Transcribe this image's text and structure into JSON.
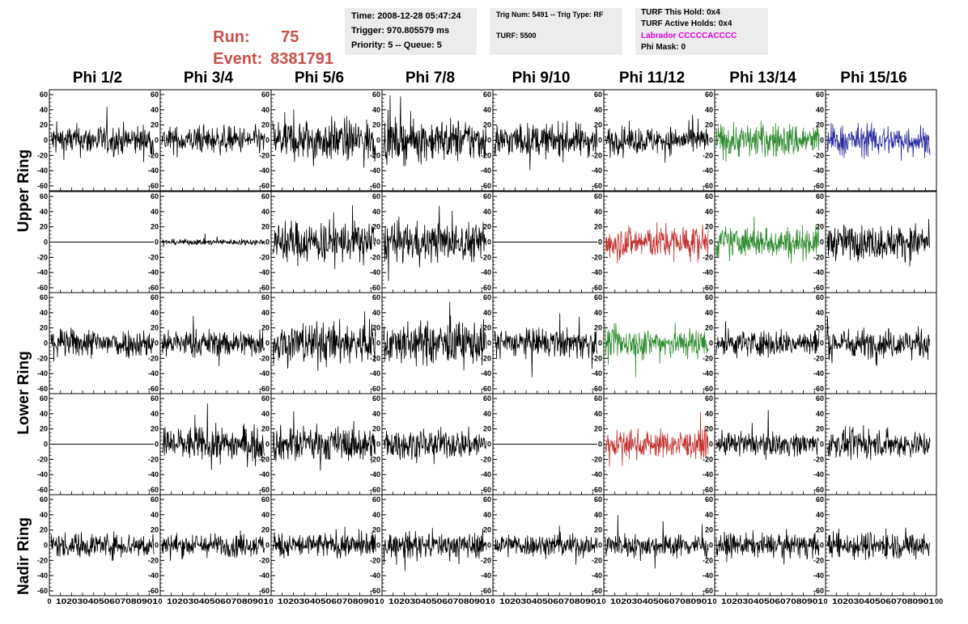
{
  "header": {
    "run_label": "Run:",
    "run_value": "75",
    "event_label": "Event:",
    "event_value": "8381791"
  },
  "info1": {
    "time": "Time: 2008-12-28 05:47:24",
    "trigger": "Trigger: 970.805579 ms",
    "priority": "Priority: 5 -- Queue: 5"
  },
  "info2": {
    "trig": "Trig Num: 5491 -- Trig Type: RF",
    "turf": "TURF: 5500"
  },
  "info3": {
    "this_hold": "TURF This Hold: 0x4",
    "active_holds": "TURF Active Holds: 0x4",
    "labrador": "Labrador CCCCCACCCC",
    "phi_mask": "Phi Mask: 0",
    "labrador_color": "#e000e0"
  },
  "phi_headers": [
    "Phi 1/2",
    "Phi 3/4",
    "Phi 5/6",
    "Phi 7/8",
    "Phi 9/10",
    "Phi 11/12",
    "Phi 13/14",
    "Phi 15/16"
  ],
  "ring_labels": [
    "Upper Ring",
    "Lower Ring",
    "Nadir Ring"
  ],
  "colors": {
    "black": "#000000",
    "green": "#2e8b2e",
    "blue": "#2a2a9c",
    "red": "#c0302c"
  },
  "chart_data": {
    "type": "line",
    "description_rows": [
      "upper-1",
      "upper-2",
      "lower-1",
      "lower-2",
      "nadir"
    ],
    "xlim": [
      0,
      100
    ],
    "ylim": [
      -60,
      60
    ],
    "y_ticks": [
      -60,
      -40,
      -20,
      0,
      20,
      40,
      60
    ],
    "x_ticks": [
      0,
      10,
      20,
      30,
      40,
      50,
      60,
      70,
      80,
      90,
      100
    ],
    "x_tick_labels": [
      "0",
      "10",
      "20",
      "30",
      "40",
      "50",
      "60",
      "70",
      "80",
      "90",
      "100"
    ],
    "bottom_axis_text": [
      "0",
      "1020304050607080901",
      "0",
      "1020304050607080901",
      "0",
      "1020304050607080901",
      "0",
      "1020304050607080901",
      "0",
      "1020304050607080901",
      "0",
      "1020304050607080901",
      "0",
      "1020304050607080901",
      "0",
      "1020304050607080901",
      "00"
    ],
    "panels": [
      [
        {
          "color": "black",
          "amp": 16,
          "flat": false
        },
        {
          "color": "black",
          "amp": 14,
          "flat": false
        },
        {
          "color": "black",
          "amp": 22,
          "flat": false
        },
        {
          "color": "black",
          "amp": 22,
          "flat": false
        },
        {
          "color": "black",
          "amp": 17,
          "flat": false
        },
        {
          "color": "black",
          "amp": 14,
          "flat": false
        },
        {
          "color": "green",
          "amp": 18,
          "flat": false
        },
        {
          "color": "blue",
          "amp": 16,
          "flat": false
        }
      ],
      [
        {
          "color": "black",
          "amp": 0,
          "flat": true
        },
        {
          "color": "black",
          "amp": 3,
          "flat": false
        },
        {
          "color": "black",
          "amp": 22,
          "flat": false
        },
        {
          "color": "black",
          "amp": 20,
          "flat": false
        },
        {
          "color": "black",
          "amp": 0,
          "flat": true
        },
        {
          "color": "red",
          "amp": 18,
          "flat": false
        },
        {
          "color": "green",
          "amp": 16,
          "flat": false
        },
        {
          "color": "black",
          "amp": 18,
          "flat": false
        }
      ],
      [
        {
          "color": "black",
          "amp": 15,
          "flat": false
        },
        {
          "color": "black",
          "amp": 14,
          "flat": false
        },
        {
          "color": "black",
          "amp": 22,
          "flat": false
        },
        {
          "color": "black",
          "amp": 22,
          "flat": false
        },
        {
          "color": "black",
          "amp": 15,
          "flat": false
        },
        {
          "color": "green",
          "amp": 16,
          "flat": false
        },
        {
          "color": "black",
          "amp": 14,
          "flat": false
        },
        {
          "color": "black",
          "amp": 15,
          "flat": false
        }
      ],
      [
        {
          "color": "black",
          "amp": 0,
          "flat": true
        },
        {
          "color": "black",
          "amp": 18,
          "flat": false
        },
        {
          "color": "black",
          "amp": 18,
          "flat": false
        },
        {
          "color": "black",
          "amp": 15,
          "flat": false
        },
        {
          "color": "black",
          "amp": 0,
          "flat": true
        },
        {
          "color": "red",
          "amp": 14,
          "flat": false
        },
        {
          "color": "black",
          "amp": 12,
          "flat": false
        },
        {
          "color": "black",
          "amp": 14,
          "flat": false
        }
      ],
      [
        {
          "color": "black",
          "amp": 13,
          "flat": false
        },
        {
          "color": "black",
          "amp": 12,
          "flat": false
        },
        {
          "color": "black",
          "amp": 13,
          "flat": false
        },
        {
          "color": "black",
          "amp": 13,
          "flat": false
        },
        {
          "color": "black",
          "amp": 12,
          "flat": false
        },
        {
          "color": "black",
          "amp": 12,
          "flat": false
        },
        {
          "color": "black",
          "amp": 12,
          "flat": false
        },
        {
          "color": "black",
          "amp": 14,
          "flat": false
        }
      ]
    ]
  }
}
